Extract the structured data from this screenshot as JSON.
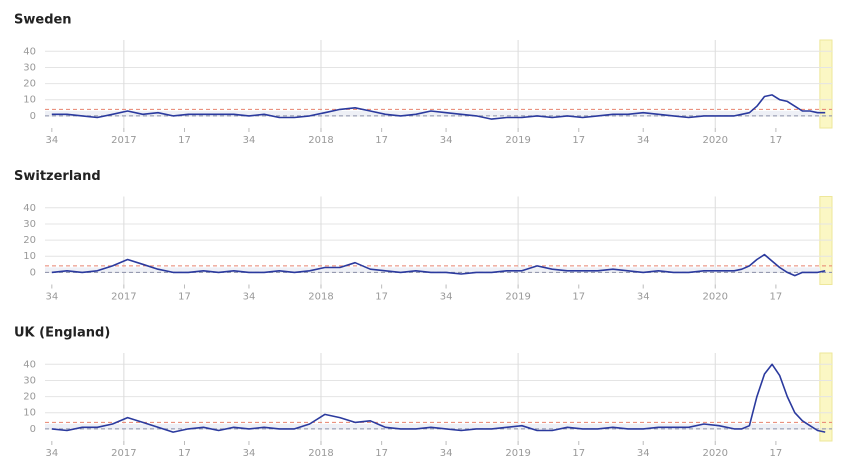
{
  "chart_data": [
    {
      "type": "line",
      "title": "Sweden",
      "x": [
        0,
        4,
        8,
        12,
        16,
        20,
        24,
        28,
        32,
        36,
        40,
        44,
        48,
        52,
        56,
        60,
        64,
        68,
        72,
        76,
        80,
        84,
        88,
        92,
        96,
        100,
        104,
        108,
        112,
        116,
        120,
        124,
        128,
        132,
        136,
        140,
        144,
        148,
        152,
        156,
        160,
        164,
        168,
        172,
        176,
        180,
        182,
        184,
        186,
        188,
        190,
        192,
        194,
        196,
        198,
        200,
        202,
        204
      ],
      "series": [
        {
          "color": "#2b3a9e",
          "values": [
            1,
            1,
            0,
            -1,
            1,
            3,
            1,
            2,
            0,
            1,
            1,
            1,
            1,
            0,
            1,
            -1,
            -1,
            0,
            2,
            4,
            5,
            3,
            1,
            0,
            1,
            3,
            2,
            1,
            0,
            -2,
            -1,
            -1,
            0,
            -1,
            0,
            -1,
            0,
            1,
            1,
            2,
            1,
            0,
            -1,
            0,
            0,
            0,
            1,
            2,
            6,
            12,
            13,
            10,
            9,
            6,
            3,
            3,
            2,
            2
          ]
        }
      ],
      "xlim": [
        -1.8,
        205.8
      ],
      "ylim": [
        -7.5,
        47
      ],
      "xticks": [
        {
          "value": 0,
          "label": "34"
        },
        {
          "value": 19,
          "label": "2017"
        },
        {
          "value": 35,
          "label": "17"
        },
        {
          "value": 52,
          "label": "34"
        },
        {
          "value": 71,
          "label": "2018"
        },
        {
          "value": 87,
          "label": "17"
        },
        {
          "value": 104,
          "label": "34"
        },
        {
          "value": 123,
          "label": "2019"
        },
        {
          "value": 139,
          "label": "17"
        },
        {
          "value": 156,
          "label": "34"
        },
        {
          "value": 175,
          "label": "2020"
        },
        {
          "value": 191,
          "label": "17"
        }
      ],
      "yticks": [
        0,
        10,
        20,
        30,
        40
      ],
      "x_gridlines": [
        19,
        71,
        123,
        175
      ],
      "grid": true,
      "reference_lines": [
        {
          "value": 4,
          "color": "#e8826f"
        },
        {
          "value": 0,
          "color": "#8a8fa8"
        }
      ],
      "shaded_x": [
        202.6,
        205.8
      ]
    },
    {
      "type": "line",
      "title": "Switzerland",
      "x": [
        0,
        4,
        8,
        12,
        16,
        20,
        24,
        28,
        32,
        36,
        40,
        44,
        48,
        52,
        56,
        60,
        64,
        68,
        72,
        76,
        80,
        84,
        88,
        92,
        96,
        100,
        104,
        108,
        112,
        116,
        120,
        124,
        128,
        132,
        136,
        140,
        144,
        148,
        152,
        156,
        160,
        164,
        168,
        172,
        176,
        180,
        182,
        184,
        186,
        188,
        190,
        192,
        194,
        196,
        198,
        200,
        202,
        204
      ],
      "series": [
        {
          "color": "#2b3a9e",
          "values": [
            0,
            1,
            0,
            1,
            4,
            8,
            5,
            2,
            0,
            0,
            1,
            0,
            1,
            0,
            0,
            1,
            0,
            1,
            3,
            3,
            6,
            2,
            1,
            0,
            1,
            0,
            0,
            -1,
            0,
            0,
            1,
            1,
            4,
            2,
            1,
            1,
            1,
            2,
            1,
            0,
            1,
            0,
            0,
            1,
            1,
            1,
            2,
            4,
            8,
            11,
            7,
            3,
            0,
            -2,
            0,
            0,
            0,
            1
          ]
        }
      ],
      "xlim": [
        -1.8,
        205.8
      ],
      "ylim": [
        -7.5,
        47
      ],
      "xticks": [
        {
          "value": 0,
          "label": "34"
        },
        {
          "value": 19,
          "label": "2017"
        },
        {
          "value": 35,
          "label": "17"
        },
        {
          "value": 52,
          "label": "34"
        },
        {
          "value": 71,
          "label": "2018"
        },
        {
          "value": 87,
          "label": "17"
        },
        {
          "value": 104,
          "label": "34"
        },
        {
          "value": 123,
          "label": "2019"
        },
        {
          "value": 139,
          "label": "17"
        },
        {
          "value": 156,
          "label": "34"
        },
        {
          "value": 175,
          "label": "2020"
        },
        {
          "value": 191,
          "label": "17"
        }
      ],
      "yticks": [
        0,
        10,
        20,
        30,
        40
      ],
      "x_gridlines": [
        19,
        71,
        123,
        175
      ],
      "grid": true,
      "reference_lines": [
        {
          "value": 4,
          "color": "#e8826f"
        },
        {
          "value": 0,
          "color": "#8a8fa8"
        }
      ],
      "shaded_x": [
        202.6,
        205.8
      ]
    },
    {
      "type": "line",
      "title": "UK (England)",
      "x": [
        0,
        4,
        8,
        12,
        16,
        20,
        24,
        28,
        32,
        36,
        40,
        44,
        48,
        52,
        56,
        60,
        64,
        68,
        72,
        76,
        80,
        84,
        88,
        92,
        96,
        100,
        104,
        108,
        112,
        116,
        120,
        124,
        128,
        132,
        136,
        140,
        144,
        148,
        152,
        156,
        160,
        164,
        168,
        172,
        176,
        180,
        182,
        184,
        186,
        188,
        190,
        192,
        194,
        196,
        198,
        200,
        202,
        204
      ],
      "series": [
        {
          "color": "#2b3a9e",
          "values": [
            0,
            -1,
            1,
            1,
            3,
            7,
            4,
            1,
            -2,
            0,
            1,
            -1,
            1,
            0,
            1,
            0,
            0,
            3,
            9,
            7,
            4,
            5,
            1,
            0,
            0,
            1,
            0,
            -1,
            0,
            0,
            1,
            2,
            -1,
            -1,
            1,
            0,
            0,
            1,
            0,
            0,
            1,
            1,
            1,
            3,
            2,
            0,
            0,
            2,
            20,
            34,
            40,
            33,
            20,
            10,
            5,
            2,
            -1,
            -2
          ]
        }
      ],
      "xlim": [
        -1.8,
        205.8
      ],
      "ylim": [
        -7.5,
        47
      ],
      "xticks": [
        {
          "value": 0,
          "label": "34"
        },
        {
          "value": 19,
          "label": "2017"
        },
        {
          "value": 35,
          "label": "17"
        },
        {
          "value": 52,
          "label": "34"
        },
        {
          "value": 71,
          "label": "2018"
        },
        {
          "value": 87,
          "label": "17"
        },
        {
          "value": 104,
          "label": "34"
        },
        {
          "value": 123,
          "label": "2019"
        },
        {
          "value": 139,
          "label": "17"
        },
        {
          "value": 156,
          "label": "34"
        },
        {
          "value": 175,
          "label": "2020"
        },
        {
          "value": 191,
          "label": "17"
        }
      ],
      "yticks": [
        0,
        10,
        20,
        30,
        40
      ],
      "x_gridlines": [
        19,
        71,
        123,
        175
      ],
      "grid": true,
      "reference_lines": [
        {
          "value": 4,
          "color": "#e8826f"
        },
        {
          "value": 0,
          "color": "#8a8fa8"
        }
      ],
      "shaded_x": [
        202.6,
        205.8
      ]
    }
  ]
}
